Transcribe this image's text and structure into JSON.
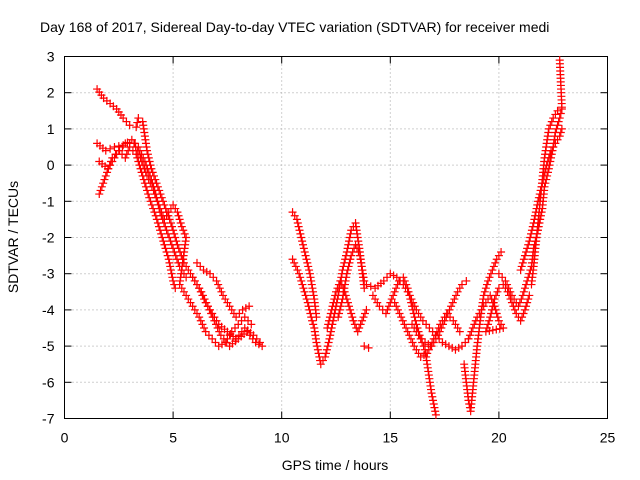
{
  "chart_data": {
    "type": "scatter",
    "title": "Day 168 of 2017, Sidereal Day-to-day VTEC variation (SDTVAR) for receiver medi",
    "xlabel": "GPS time / hours",
    "ylabel": "SDTVAR / TECUs",
    "xlim": [
      0,
      25
    ],
    "ylim": [
      -7,
      3
    ],
    "xticks": [
      0,
      5,
      10,
      15,
      20,
      25
    ],
    "yticks": [
      -7,
      -6,
      -5,
      -4,
      -3,
      -2,
      -1,
      0,
      1,
      2,
      3
    ],
    "xtick_labels": [
      "0",
      "5",
      "10",
      "15",
      "20",
      "25"
    ],
    "ytick_labels": [
      "-7",
      "-6",
      "-5",
      "-4",
      "-3",
      "-2",
      "-1",
      "0",
      "1",
      "2",
      "3"
    ],
    "grid": true,
    "legend": "none",
    "marker": "plus",
    "color": "#ff0000",
    "series": [
      {
        "values": [
          [
            1.5,
            2.1
          ],
          [
            1.8,
            1.85
          ],
          [
            2.1,
            1.7
          ],
          [
            2.4,
            1.55
          ],
          [
            2.7,
            1.3
          ],
          [
            3.0,
            1.1
          ],
          [
            3.3,
            1.05
          ],
          [
            3.4,
            1.3
          ],
          [
            3.6,
            1.2
          ],
          [
            3.8,
            0.4
          ],
          [
            4.0,
            -0.1
          ],
          [
            4.3,
            -0.6
          ],
          [
            4.6,
            -1.1
          ],
          [
            4.9,
            -1.6
          ],
          [
            5.2,
            -2.2
          ],
          [
            5.5,
            -2.7
          ],
          [
            5.8,
            -3.0
          ],
          [
            6.0,
            -3.2
          ],
          [
            6.3,
            -3.5
          ],
          [
            6.6,
            -3.9
          ],
          [
            6.9,
            -4.3
          ],
          [
            7.2,
            -4.7
          ],
          [
            7.6,
            -5.0
          ],
          [
            8.0,
            -4.8
          ],
          [
            8.4,
            -4.6
          ],
          [
            8.8,
            -4.9
          ],
          [
            9.1,
            -5.0
          ],
          [
            1.5,
            0.6
          ],
          [
            1.9,
            0.4
          ],
          [
            2.3,
            0.5
          ],
          [
            2.7,
            0.55
          ],
          [
            3.1,
            0.7
          ],
          [
            3.4,
            0.5
          ],
          [
            3.7,
            0.1
          ],
          [
            4.0,
            -0.4
          ],
          [
            4.2,
            -0.8
          ],
          [
            4.4,
            -1.3
          ],
          [
            4.7,
            -1.8
          ],
          [
            5.0,
            -2.3
          ],
          [
            5.3,
            -2.8
          ],
          [
            5.6,
            -3.1
          ],
          [
            5.9,
            -3.1
          ],
          [
            6.2,
            -3.4
          ],
          [
            6.5,
            -3.8
          ],
          [
            6.8,
            -4.1
          ],
          [
            7.1,
            -4.4
          ],
          [
            7.5,
            -4.6
          ],
          [
            7.9,
            -4.8
          ],
          [
            8.3,
            -4.5
          ],
          [
            8.7,
            -4.7
          ],
          [
            9.0,
            -4.9
          ],
          [
            1.6,
            -0.8
          ],
          [
            1.9,
            -0.3
          ],
          [
            2.2,
            0.2
          ],
          [
            2.5,
            0.4
          ],
          [
            2.8,
            0.2
          ],
          [
            3.0,
            0.5
          ],
          [
            3.3,
            0.3
          ],
          [
            3.5,
            -0.1
          ],
          [
            3.7,
            -0.5
          ],
          [
            3.9,
            -0.9
          ],
          [
            4.2,
            -1.4
          ],
          [
            4.5,
            -2.0
          ],
          [
            4.8,
            -2.6
          ],
          [
            5.0,
            -3.2
          ],
          [
            5.1,
            -3.4
          ],
          [
            1.6,
            0.1
          ],
          [
            2.0,
            -0.1
          ],
          [
            2.4,
            0.3
          ],
          [
            2.8,
            0.6
          ],
          [
            3.2,
            0.6
          ],
          [
            3.5,
            0.2
          ],
          [
            3.8,
            -0.3
          ],
          [
            4.1,
            -0.7
          ],
          [
            4.4,
            -1.2
          ],
          [
            4.6,
            -1.5
          ],
          [
            4.8,
            -1.3
          ],
          [
            5.0,
            -1.1
          ],
          [
            5.2,
            -1.3
          ],
          [
            5.4,
            -1.7
          ],
          [
            5.6,
            -2.0
          ],
          [
            5.3,
            -3.3
          ],
          [
            5.6,
            -3.6
          ],
          [
            5.9,
            -3.9
          ],
          [
            6.2,
            -4.2
          ],
          [
            6.5,
            -4.6
          ],
          [
            6.8,
            -4.8
          ],
          [
            7.1,
            -5.0
          ],
          [
            7.4,
            -4.9
          ],
          [
            7.7,
            -4.6
          ],
          [
            8.0,
            -4.4
          ],
          [
            8.3,
            -4.2
          ],
          [
            8.6,
            -4.4
          ],
          [
            6.1,
            -2.7
          ],
          [
            6.4,
            -2.9
          ],
          [
            6.7,
            -3.0
          ],
          [
            7.0,
            -3.2
          ],
          [
            7.3,
            -3.6
          ],
          [
            7.6,
            -3.9
          ],
          [
            7.9,
            -4.2
          ],
          [
            8.2,
            -4.0
          ],
          [
            8.5,
            -3.9
          ],
          [
            10.5,
            -1.3
          ],
          [
            10.7,
            -1.5
          ],
          [
            10.9,
            -2.0
          ],
          [
            11.1,
            -2.5
          ],
          [
            11.3,
            -3.0
          ],
          [
            11.5,
            -3.7
          ],
          [
            11.6,
            -4.2
          ],
          [
            10.5,
            -2.6
          ],
          [
            10.8,
            -3.0
          ],
          [
            11.0,
            -3.4
          ],
          [
            11.2,
            -3.8
          ],
          [
            11.4,
            -4.3
          ],
          [
            11.5,
            -4.5
          ],
          [
            11.6,
            -4.9
          ],
          [
            11.8,
            -5.5
          ],
          [
            12.0,
            -5.3
          ],
          [
            12.2,
            -4.8
          ],
          [
            12.4,
            -4.2
          ],
          [
            12.6,
            -3.6
          ],
          [
            12.8,
            -2.9
          ],
          [
            13.0,
            -2.4
          ],
          [
            13.2,
            -1.8
          ],
          [
            13.4,
            -1.6
          ],
          [
            13.5,
            -2.0
          ],
          [
            13.6,
            -2.4
          ],
          [
            13.7,
            -2.9
          ],
          [
            13.8,
            -3.4
          ],
          [
            12.1,
            -4.5
          ],
          [
            12.3,
            -4.0
          ],
          [
            12.5,
            -3.5
          ],
          [
            12.7,
            -3.2
          ],
          [
            12.9,
            -3.5
          ],
          [
            13.1,
            -3.9
          ],
          [
            13.3,
            -4.3
          ],
          [
            13.5,
            -4.6
          ],
          [
            13.7,
            -4.3
          ],
          [
            13.9,
            -4.0
          ],
          [
            12.6,
            -4.2
          ],
          [
            12.8,
            -3.7
          ],
          [
            13.0,
            -3.0
          ],
          [
            13.2,
            -2.5
          ],
          [
            13.4,
            -2.2
          ],
          [
            13.6,
            -2.5
          ],
          [
            13.8,
            -3.2
          ],
          [
            13.8,
            -5.0
          ],
          [
            14.0,
            -5.05
          ],
          [
            13.9,
            -3.3
          ],
          [
            14.3,
            -3.4
          ],
          [
            14.7,
            -3.2
          ],
          [
            15.0,
            -3.0
          ],
          [
            15.3,
            -3.1
          ],
          [
            15.6,
            -3.3
          ],
          [
            15.9,
            -3.6
          ],
          [
            16.2,
            -4.0
          ],
          [
            16.5,
            -4.3
          ],
          [
            16.8,
            -4.5
          ],
          [
            17.1,
            -4.7
          ],
          [
            17.4,
            -4.9
          ],
          [
            17.7,
            -5.0
          ],
          [
            18.0,
            -5.1
          ],
          [
            18.3,
            -5.0
          ],
          [
            18.6,
            -4.8
          ],
          [
            14.2,
            -3.6
          ],
          [
            14.5,
            -3.9
          ],
          [
            14.8,
            -4.1
          ],
          [
            15.0,
            -3.8
          ],
          [
            15.2,
            -3.5
          ],
          [
            15.4,
            -3.2
          ],
          [
            15.6,
            -3.1
          ],
          [
            15.8,
            -3.4
          ],
          [
            16.0,
            -3.9
          ],
          [
            16.2,
            -4.4
          ],
          [
            16.4,
            -4.8
          ],
          [
            16.6,
            -5.1
          ],
          [
            16.7,
            -5.5
          ],
          [
            16.8,
            -5.9
          ],
          [
            16.9,
            -6.3
          ],
          [
            17.0,
            -6.6
          ],
          [
            17.1,
            -6.9
          ],
          [
            15.2,
            -3.8
          ],
          [
            15.5,
            -4.2
          ],
          [
            15.8,
            -4.6
          ],
          [
            16.1,
            -5.0
          ],
          [
            16.4,
            -5.3
          ],
          [
            16.7,
            -5.2
          ],
          [
            17.0,
            -4.8
          ],
          [
            17.3,
            -4.4
          ],
          [
            17.6,
            -4.1
          ],
          [
            17.9,
            -4.3
          ],
          [
            18.2,
            -4.6
          ],
          [
            16.0,
            -4.4
          ],
          [
            16.3,
            -4.7
          ],
          [
            16.6,
            -4.9
          ],
          [
            16.9,
            -5.0
          ],
          [
            17.2,
            -4.7
          ],
          [
            17.5,
            -4.3
          ],
          [
            17.8,
            -3.9
          ],
          [
            18.1,
            -3.5
          ],
          [
            18.3,
            -3.3
          ],
          [
            18.5,
            -3.2
          ],
          [
            18.4,
            -5.5
          ],
          [
            18.5,
            -6.0
          ],
          [
            18.6,
            -6.5
          ],
          [
            18.7,
            -6.8
          ],
          [
            18.8,
            -6.2
          ],
          [
            18.9,
            -5.6
          ],
          [
            19.0,
            -5.0
          ],
          [
            19.1,
            -4.5
          ],
          [
            19.2,
            -4.0
          ],
          [
            19.3,
            -3.6
          ],
          [
            19.5,
            -3.2
          ],
          [
            19.7,
            -2.9
          ],
          [
            19.9,
            -2.6
          ],
          [
            20.1,
            -2.4
          ],
          [
            18.6,
            -4.8
          ],
          [
            18.8,
            -4.5
          ],
          [
            19.0,
            -4.2
          ],
          [
            19.2,
            -4.0
          ],
          [
            19.4,
            -3.8
          ],
          [
            19.6,
            -3.6
          ],
          [
            19.8,
            -3.9
          ],
          [
            20.0,
            -4.3
          ],
          [
            20.2,
            -4.5
          ],
          [
            19.4,
            -4.6
          ],
          [
            19.6,
            -4.2
          ],
          [
            19.8,
            -3.7
          ],
          [
            20.0,
            -3.4
          ],
          [
            20.2,
            -3.3
          ],
          [
            20.4,
            -3.5
          ],
          [
            20.6,
            -3.8
          ],
          [
            20.8,
            -4.1
          ],
          [
            21.0,
            -4.3
          ],
          [
            21.2,
            -4.0
          ],
          [
            21.4,
            -3.6
          ],
          [
            20.0,
            -3.0
          ],
          [
            20.3,
            -3.2
          ],
          [
            20.6,
            -3.6
          ],
          [
            20.9,
            -3.9
          ],
          [
            21.1,
            -3.6
          ],
          [
            21.3,
            -3.2
          ],
          [
            21.5,
            -2.8
          ],
          [
            21.6,
            -2.3
          ],
          [
            21.8,
            -1.8
          ],
          [
            22.0,
            -1.2
          ],
          [
            22.1,
            -0.6
          ],
          [
            22.3,
            -0.1
          ],
          [
            22.5,
            0.5
          ],
          [
            22.6,
            0.9
          ],
          [
            22.8,
            1.3
          ],
          [
            22.9,
            1.55
          ],
          [
            21.0,
            -2.9
          ],
          [
            21.2,
            -2.5
          ],
          [
            21.4,
            -2.1
          ],
          [
            21.6,
            -1.6
          ],
          [
            21.8,
            -1.0
          ],
          [
            22.0,
            -0.5
          ],
          [
            22.2,
            0.0
          ],
          [
            22.4,
            0.4
          ],
          [
            22.6,
            0.6
          ],
          [
            22.8,
            0.8
          ],
          [
            22.9,
            1.0
          ],
          [
            21.5,
            -3.3
          ],
          [
            21.6,
            -2.8
          ],
          [
            21.7,
            -2.2
          ],
          [
            21.8,
            -1.6
          ],
          [
            21.9,
            -1.0
          ],
          [
            22.0,
            -0.4
          ],
          [
            22.1,
            0.2
          ],
          [
            22.2,
            0.6
          ],
          [
            22.3,
            1.0
          ],
          [
            22.5,
            1.3
          ],
          [
            22.7,
            1.5
          ],
          [
            22.9,
            1.6
          ],
          [
            22.8,
            2.9
          ]
        ]
      }
    ]
  }
}
